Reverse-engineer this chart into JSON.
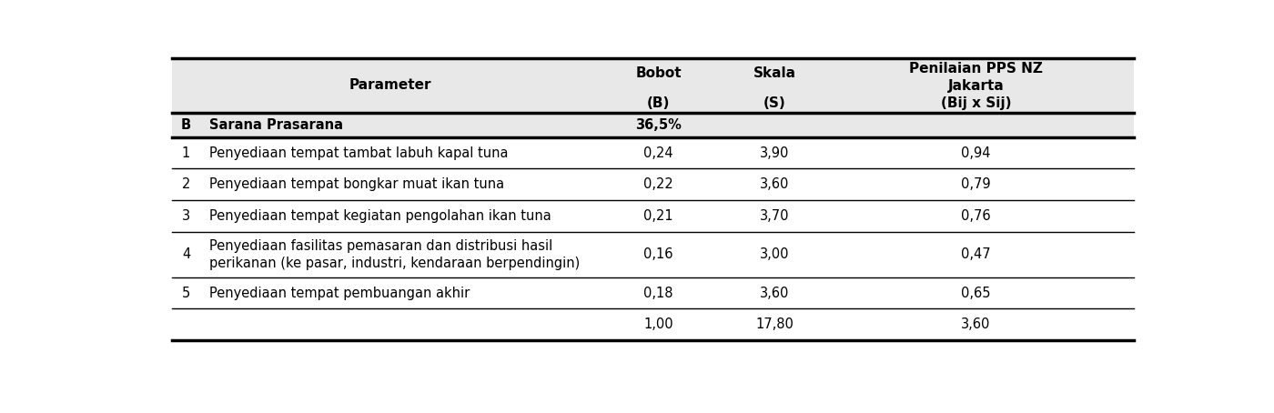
{
  "rows": [
    [
      "1",
      "Penyediaan tempat tambat labuh kapal tuna",
      "0,24",
      "3,90",
      "0,94"
    ],
    [
      "2",
      "Penyediaan tempat bongkar muat ikan tuna",
      "0,22",
      "3,60",
      "0,79"
    ],
    [
      "3",
      "Penyediaan tempat kegiatan pengolahan ikan tuna",
      "0,21",
      "3,70",
      "0,76"
    ],
    [
      "4",
      "Penyediaan fasilitas pemasaran dan distribusi hasil\nperikanan (ke pasar, industri, kendaraan berpendingin)",
      "0,16",
      "3,00",
      "0,47"
    ],
    [
      "5",
      "Penyediaan tempat pembuangan akhir",
      "0,18",
      "3,60",
      "0,65"
    ]
  ],
  "total_row": [
    "",
    "",
    "1,00",
    "17,80",
    "3,60"
  ],
  "bg_color": "#ffffff",
  "header_bg": "#e8e8e8",
  "section_bg": "#ffffff",
  "text_color": "#000000",
  "line_color": "#000000",
  "font_size": 10.5,
  "header_font_size": 11
}
